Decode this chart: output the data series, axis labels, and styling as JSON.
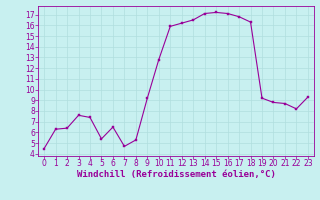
{
  "x": [
    0,
    1,
    2,
    3,
    4,
    5,
    6,
    7,
    8,
    9,
    10,
    11,
    12,
    13,
    14,
    15,
    16,
    17,
    18,
    19,
    20,
    21,
    22,
    23
  ],
  "y": [
    4.5,
    6.3,
    6.4,
    7.6,
    7.4,
    5.4,
    6.5,
    4.7,
    5.3,
    9.2,
    12.8,
    15.9,
    16.2,
    16.5,
    17.1,
    17.2,
    17.1,
    16.8,
    16.3,
    9.2,
    8.8,
    8.7,
    8.2,
    9.3
  ],
  "line_color": "#990099",
  "marker": "s",
  "marker_size": 2.0,
  "bg_color": "#c8f0f0",
  "grid_color": "#b0dede",
  "tick_color": "#990099",
  "label_color": "#990099",
  "xlabel": "Windchill (Refroidissement éolien,°C)",
  "ylim": [
    3.8,
    17.8
  ],
  "xlim": [
    -0.5,
    23.5
  ],
  "yticks": [
    4,
    5,
    6,
    7,
    8,
    9,
    10,
    11,
    12,
    13,
    14,
    15,
    16,
    17
  ],
  "xticks": [
    0,
    1,
    2,
    3,
    4,
    5,
    6,
    7,
    8,
    9,
    10,
    11,
    12,
    13,
    14,
    15,
    16,
    17,
    18,
    19,
    20,
    21,
    22,
    23
  ],
  "tick_label_fontsize": 5.5,
  "xlabel_fontsize": 6.5
}
